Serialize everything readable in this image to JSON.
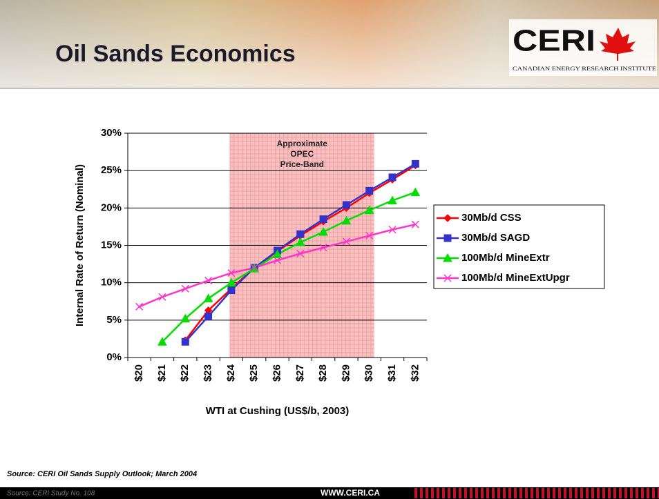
{
  "header": {
    "title": "Oil Sands Economics",
    "logo": "CERI",
    "logo_subtitle": "CANADIAN ENERGY RESEARCH INSTITUTE"
  },
  "chart_data": {
    "type": "line",
    "categories": [
      "$20",
      "$21",
      "$22",
      "$23",
      "$24",
      "$25",
      "$26",
      "$27",
      "$28",
      "$29",
      "$30",
      "$31",
      "$32"
    ],
    "y_label": "Internal Rate of Return (Nominal)",
    "x_label": "WTI at Cushing (US$/b, 2003)",
    "ylim": [
      0,
      30
    ],
    "yticks": [
      {
        "value": 0,
        "label": "0%"
      },
      {
        "value": 5,
        "label": "5%"
      },
      {
        "value": 10,
        "label": "10%"
      },
      {
        "value": 15,
        "label": "15%"
      },
      {
        "value": 20,
        "label": "20%"
      },
      {
        "value": 25,
        "label": "25%"
      },
      {
        "value": 30,
        "label": "30%"
      }
    ],
    "grid": true,
    "legend": "right",
    "band": {
      "from": "$24",
      "to": "$30",
      "color": "#f4b6b6",
      "label": [
        "Approximate",
        "OPEC",
        "Price-Band"
      ]
    },
    "series": [
      {
        "name": "30Mb/d CSS",
        "color": "#ff0000",
        "marker": "diamond",
        "values": [
          null,
          null,
          2.3,
          6.3,
          9.2,
          12.0,
          14.2,
          16.3,
          18.2,
          20.0,
          22.0,
          23.8,
          25.7
        ]
      },
      {
        "name": "30Mb/d SAGD",
        "color": "#3333cc",
        "marker": "square",
        "values": [
          null,
          null,
          2.1,
          5.5,
          9.0,
          12.0,
          14.3,
          16.5,
          18.5,
          20.4,
          22.3,
          24.1,
          25.9
        ]
      },
      {
        "name": "100Mb/d MineExtr",
        "color": "#00dd00",
        "marker": "triangle",
        "values": [
          null,
          2.1,
          5.2,
          7.9,
          10.0,
          11.9,
          13.8,
          15.4,
          16.8,
          18.3,
          19.7,
          21.0,
          22.1
        ]
      },
      {
        "name": "100Mb/d MineExtUpgr",
        "color": "#ff33cc",
        "marker": "x",
        "values": [
          6.8,
          8.1,
          9.2,
          10.3,
          11.3,
          12.0,
          13.0,
          13.9,
          14.7,
          15.5,
          16.3,
          17.1,
          17.8
        ]
      }
    ]
  },
  "source": "Source: CERI Oil Sands Supply Outlook; March 2004",
  "footer": {
    "study": "Source: CERI Study No. 108",
    "url": "WWW.CERI.CA"
  }
}
